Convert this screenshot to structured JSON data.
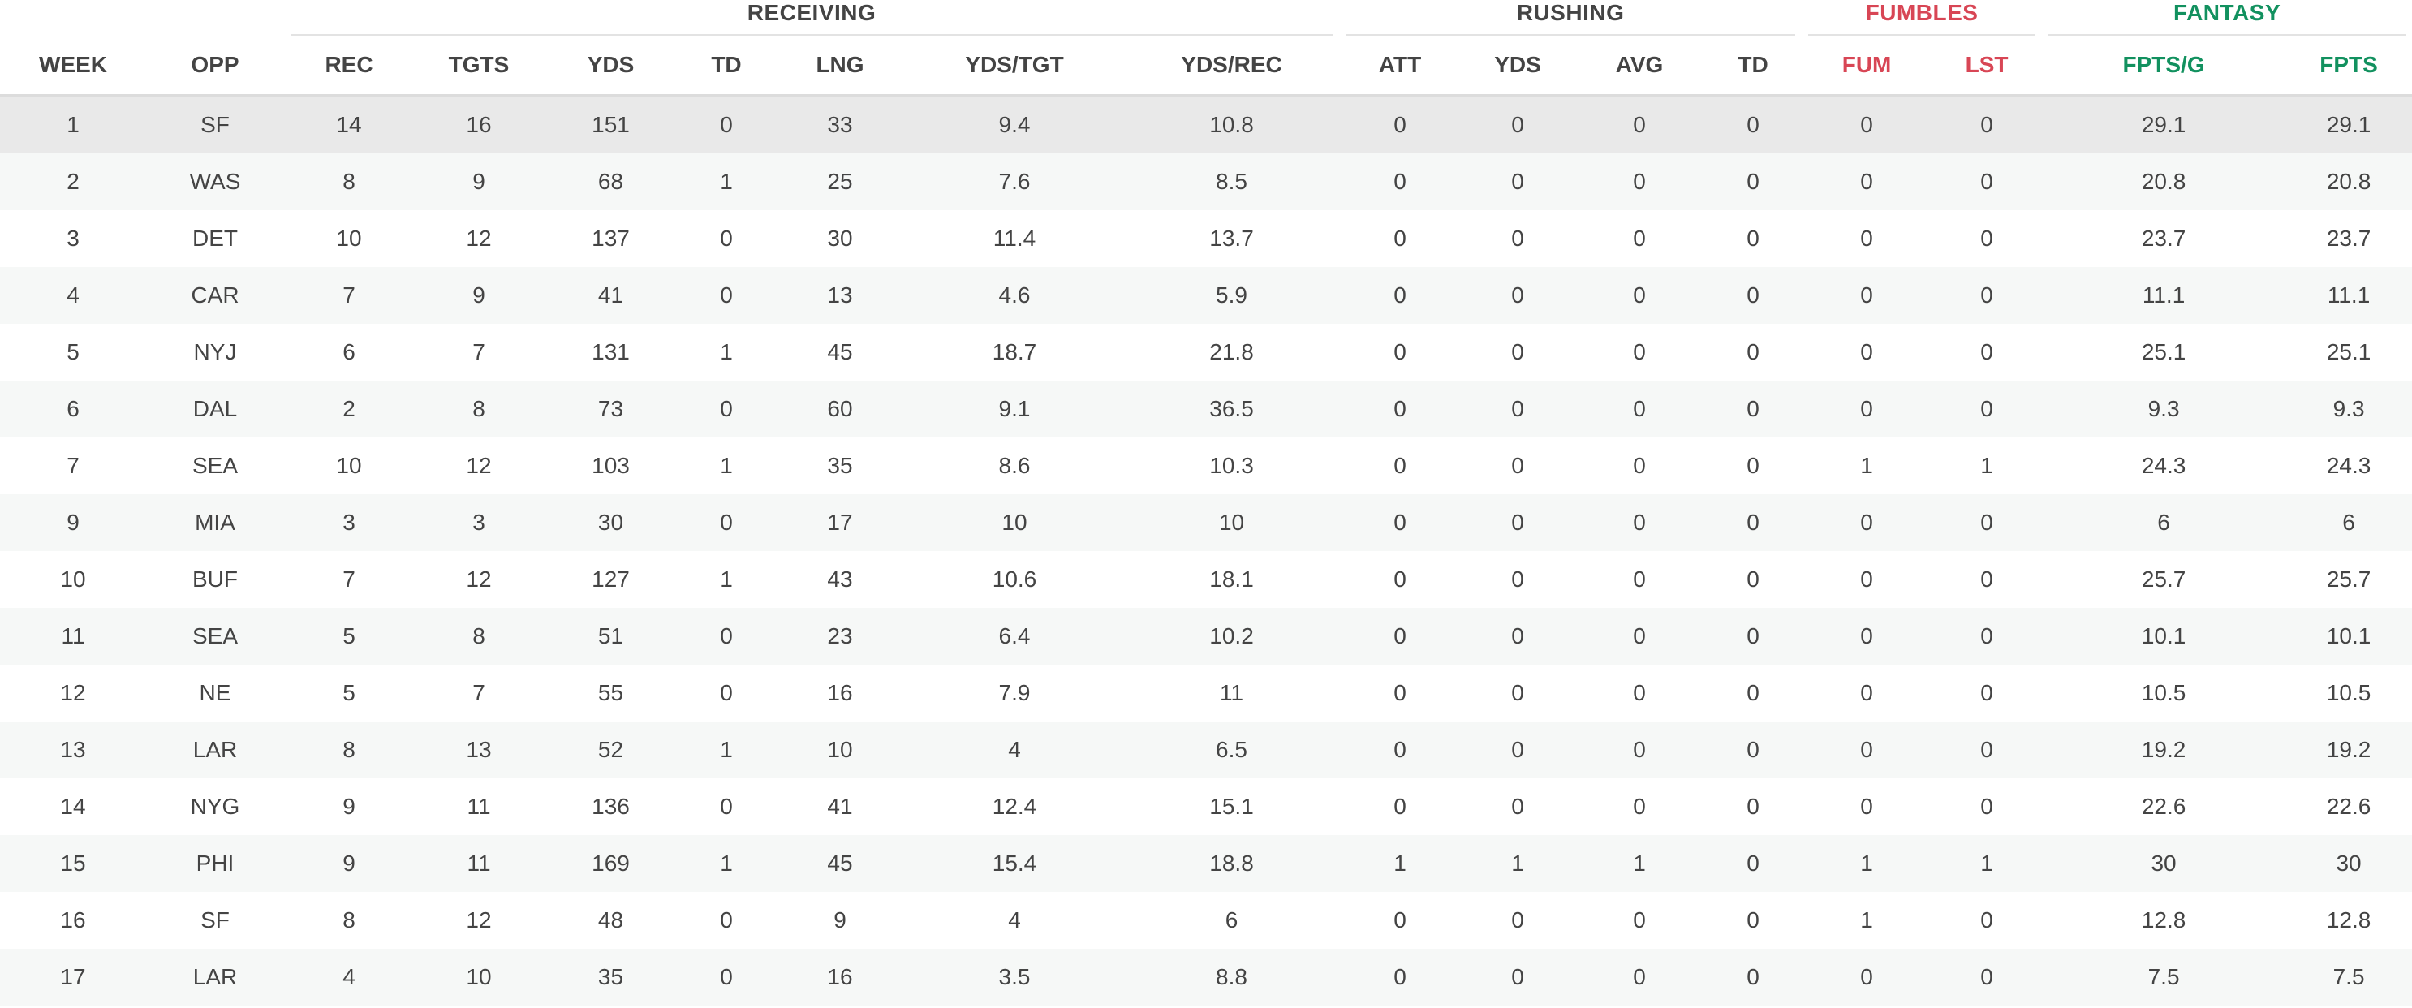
{
  "groups": {
    "receiving": "RECEIVING",
    "rushing": "RUSHING",
    "fumbles": "FUMBLES",
    "fantasy": "FANTASY"
  },
  "columns": [
    "WEEK",
    "OPP",
    "REC",
    "TGTS",
    "YDS",
    "TD",
    "LNG",
    "YDS/TGT",
    "YDS/REC",
    "ATT",
    "YDS",
    "AVG",
    "TD",
    "FUM",
    "LST",
    "FPTS/G",
    "FPTS"
  ],
  "colors": {
    "fumbles": "#d84655",
    "fantasy": "#12915f",
    "highlight_row": "#e9e9e9"
  },
  "rows": [
    [
      "1",
      "SF",
      "14",
      "16",
      "151",
      "0",
      "33",
      "9.4",
      "10.8",
      "0",
      "0",
      "0",
      "0",
      "0",
      "0",
      "29.1",
      "29.1"
    ],
    [
      "2",
      "WAS",
      "8",
      "9",
      "68",
      "1",
      "25",
      "7.6",
      "8.5",
      "0",
      "0",
      "0",
      "0",
      "0",
      "0",
      "20.8",
      "20.8"
    ],
    [
      "3",
      "DET",
      "10",
      "12",
      "137",
      "0",
      "30",
      "11.4",
      "13.7",
      "0",
      "0",
      "0",
      "0",
      "0",
      "0",
      "23.7",
      "23.7"
    ],
    [
      "4",
      "CAR",
      "7",
      "9",
      "41",
      "0",
      "13",
      "4.6",
      "5.9",
      "0",
      "0",
      "0",
      "0",
      "0",
      "0",
      "11.1",
      "11.1"
    ],
    [
      "5",
      "NYJ",
      "6",
      "7",
      "131",
      "1",
      "45",
      "18.7",
      "21.8",
      "0",
      "0",
      "0",
      "0",
      "0",
      "0",
      "25.1",
      "25.1"
    ],
    [
      "6",
      "DAL",
      "2",
      "8",
      "73",
      "0",
      "60",
      "9.1",
      "36.5",
      "0",
      "0",
      "0",
      "0",
      "0",
      "0",
      "9.3",
      "9.3"
    ],
    [
      "7",
      "SEA",
      "10",
      "12",
      "103",
      "1",
      "35",
      "8.6",
      "10.3",
      "0",
      "0",
      "0",
      "0",
      "1",
      "1",
      "24.3",
      "24.3"
    ],
    [
      "9",
      "MIA",
      "3",
      "3",
      "30",
      "0",
      "17",
      "10",
      "10",
      "0",
      "0",
      "0",
      "0",
      "0",
      "0",
      "6",
      "6"
    ],
    [
      "10",
      "BUF",
      "7",
      "12",
      "127",
      "1",
      "43",
      "10.6",
      "18.1",
      "0",
      "0",
      "0",
      "0",
      "0",
      "0",
      "25.7",
      "25.7"
    ],
    [
      "11",
      "SEA",
      "5",
      "8",
      "51",
      "0",
      "23",
      "6.4",
      "10.2",
      "0",
      "0",
      "0",
      "0",
      "0",
      "0",
      "10.1",
      "10.1"
    ],
    [
      "12",
      "NE",
      "5",
      "7",
      "55",
      "0",
      "16",
      "7.9",
      "11",
      "0",
      "0",
      "0",
      "0",
      "0",
      "0",
      "10.5",
      "10.5"
    ],
    [
      "13",
      "LAR",
      "8",
      "13",
      "52",
      "1",
      "10",
      "4",
      "6.5",
      "0",
      "0",
      "0",
      "0",
      "0",
      "0",
      "19.2",
      "19.2"
    ],
    [
      "14",
      "NYG",
      "9",
      "11",
      "136",
      "0",
      "41",
      "12.4",
      "15.1",
      "0",
      "0",
      "0",
      "0",
      "0",
      "0",
      "22.6",
      "22.6"
    ],
    [
      "15",
      "PHI",
      "9",
      "11",
      "169",
      "1",
      "45",
      "15.4",
      "18.8",
      "1",
      "1",
      "1",
      "0",
      "1",
      "1",
      "30",
      "30"
    ],
    [
      "16",
      "SF",
      "8",
      "12",
      "48",
      "0",
      "9",
      "4",
      "6",
      "0",
      "0",
      "0",
      "0",
      "1",
      "0",
      "12.8",
      "12.8"
    ],
    [
      "17",
      "LAR",
      "4",
      "10",
      "35",
      "0",
      "16",
      "3.5",
      "8.8",
      "0",
      "0",
      "0",
      "0",
      "0",
      "0",
      "7.5",
      "7.5"
    ]
  ]
}
